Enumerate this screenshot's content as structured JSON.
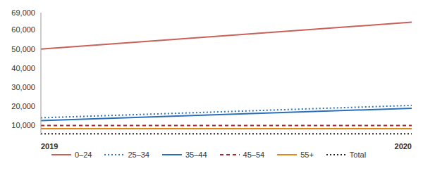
{
  "chart_data": {
    "type": "line",
    "categories": [
      "2019",
      "2020"
    ],
    "series": [
      {
        "name": "0–24",
        "color": "#c8615a",
        "line_style": "solid",
        "values": [
          50000,
          64000
        ]
      },
      {
        "name": "25–34",
        "color": "#2e75b6",
        "line_style": "dotted",
        "values": [
          14000,
          20500
        ]
      },
      {
        "name": "35–44",
        "color": "#2a6ebb",
        "line_style": "solid",
        "values": [
          12500,
          19000
        ]
      },
      {
        "name": "45–54",
        "color": "#a0282c",
        "line_style": "dashed",
        "values": [
          10000,
          10000
        ]
      },
      {
        "name": "55+",
        "color": "#e08a1e",
        "line_style": "solid",
        "values": [
          8300,
          8300
        ]
      },
      {
        "name": "Total",
        "color": "#222222",
        "line_style": "dotted",
        "values": [
          5600,
          5600
        ]
      }
    ],
    "ylim": [
      5000,
      69000
    ],
    "yticks": [
      {
        "value": 10000,
        "label": "10,000"
      },
      {
        "value": 20000,
        "label": "20,000"
      },
      {
        "value": 30000,
        "label": "30,000"
      },
      {
        "value": 40000,
        "label": "40,000"
      },
      {
        "value": 50000,
        "label": "50,000"
      },
      {
        "value": 60000,
        "label": "60,000"
      },
      {
        "value": 69000,
        "label": "69,000"
      }
    ],
    "grid": false,
    "legend": "bottom"
  }
}
